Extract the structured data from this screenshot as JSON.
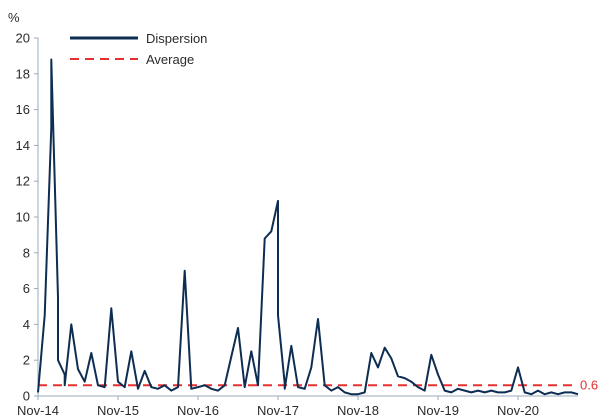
{
  "chart_data": {
    "type": "line",
    "title": "",
    "xlabel": "",
    "ylabel": "",
    "y_unit": "%",
    "ylim": [
      0,
      20
    ],
    "y_ticks": [
      0,
      2,
      4,
      6,
      8,
      10,
      12,
      14,
      16,
      18,
      20
    ],
    "x_ticks": [
      "Nov-14",
      "Nov-15",
      "Nov-16",
      "Nov-17",
      "Nov-18",
      "Nov-19",
      "Nov-20"
    ],
    "x_range": [
      "2014-11",
      "2021-08"
    ],
    "legend_position": "top-left",
    "grid": false,
    "colors": {
      "dispersion": "#0d2d52",
      "average": "#e53030",
      "axis": "#9aa9bd"
    },
    "series": [
      {
        "name": "Dispersion",
        "style": "solid",
        "x": [
          "2014-11",
          "2014-12",
          "2015-01",
          "2015-01",
          "2015-02",
          "2015-02",
          "2015-03",
          "2015-03",
          "2015-04",
          "2015-05",
          "2015-06",
          "2015-07",
          "2015-08",
          "2015-09",
          "2015-10",
          "2015-11",
          "2015-12",
          "2016-01",
          "2016-02",
          "2016-03",
          "2016-04",
          "2016-05",
          "2016-06",
          "2016-07",
          "2016-08",
          "2016-09",
          "2016-10",
          "2016-11",
          "2016-12",
          "2017-01",
          "2017-02",
          "2017-03",
          "2017-04",
          "2017-05",
          "2017-06",
          "2017-07",
          "2017-08",
          "2017-09",
          "2017-10",
          "2017-11",
          "2017-11",
          "2017-12",
          "2017-12",
          "2018-01",
          "2018-02",
          "2018-03",
          "2018-04",
          "2018-05",
          "2018-06",
          "2018-07",
          "2018-08",
          "2018-09",
          "2018-10",
          "2018-11",
          "2018-12",
          "2019-01",
          "2019-02",
          "2019-03",
          "2019-04",
          "2019-05",
          "2019-06",
          "2019-07",
          "2019-08",
          "2019-09",
          "2019-10",
          "2019-11",
          "2019-12",
          "2020-01",
          "2020-02",
          "2020-03",
          "2020-04",
          "2020-05",
          "2020-06",
          "2020-07",
          "2020-08",
          "2020-09",
          "2020-10",
          "2020-11",
          "2020-12",
          "2021-01",
          "2021-02",
          "2021-03",
          "2021-04",
          "2021-05",
          "2021-06",
          "2021-07",
          "2021-08"
        ],
        "values": [
          0.2,
          4.5,
          15.0,
          18.8,
          5.5,
          2.0,
          1.2,
          0.6,
          4.0,
          1.5,
          0.8,
          2.4,
          0.6,
          0.5,
          4.9,
          0.8,
          0.5,
          2.5,
          0.4,
          1.4,
          0.5,
          0.4,
          0.6,
          0.3,
          0.5,
          7.0,
          0.4,
          0.5,
          0.6,
          0.4,
          0.3,
          0.6,
          2.2,
          3.8,
          0.5,
          2.5,
          0.6,
          8.8,
          9.2,
          10.9,
          4.5,
          0.7,
          0.4,
          2.8,
          0.5,
          0.4,
          1.6,
          4.3,
          0.6,
          0.3,
          0.5,
          0.2,
          0.1,
          0.1,
          0.2,
          2.4,
          1.6,
          2.7,
          2.1,
          1.1,
          1.0,
          0.8,
          0.5,
          0.3,
          2.3,
          1.2,
          0.3,
          0.2,
          0.4,
          0.3,
          0.2,
          0.3,
          0.2,
          0.3,
          0.2,
          0.2,
          0.3,
          1.6,
          0.2,
          0.1,
          0.3,
          0.1,
          0.2,
          0.1,
          0.2,
          0.2,
          0.1
        ]
      },
      {
        "name": "Average",
        "style": "dashed",
        "value": 0.6
      }
    ],
    "annotations": [
      {
        "text": "0.6",
        "y": 0.6
      }
    ]
  }
}
